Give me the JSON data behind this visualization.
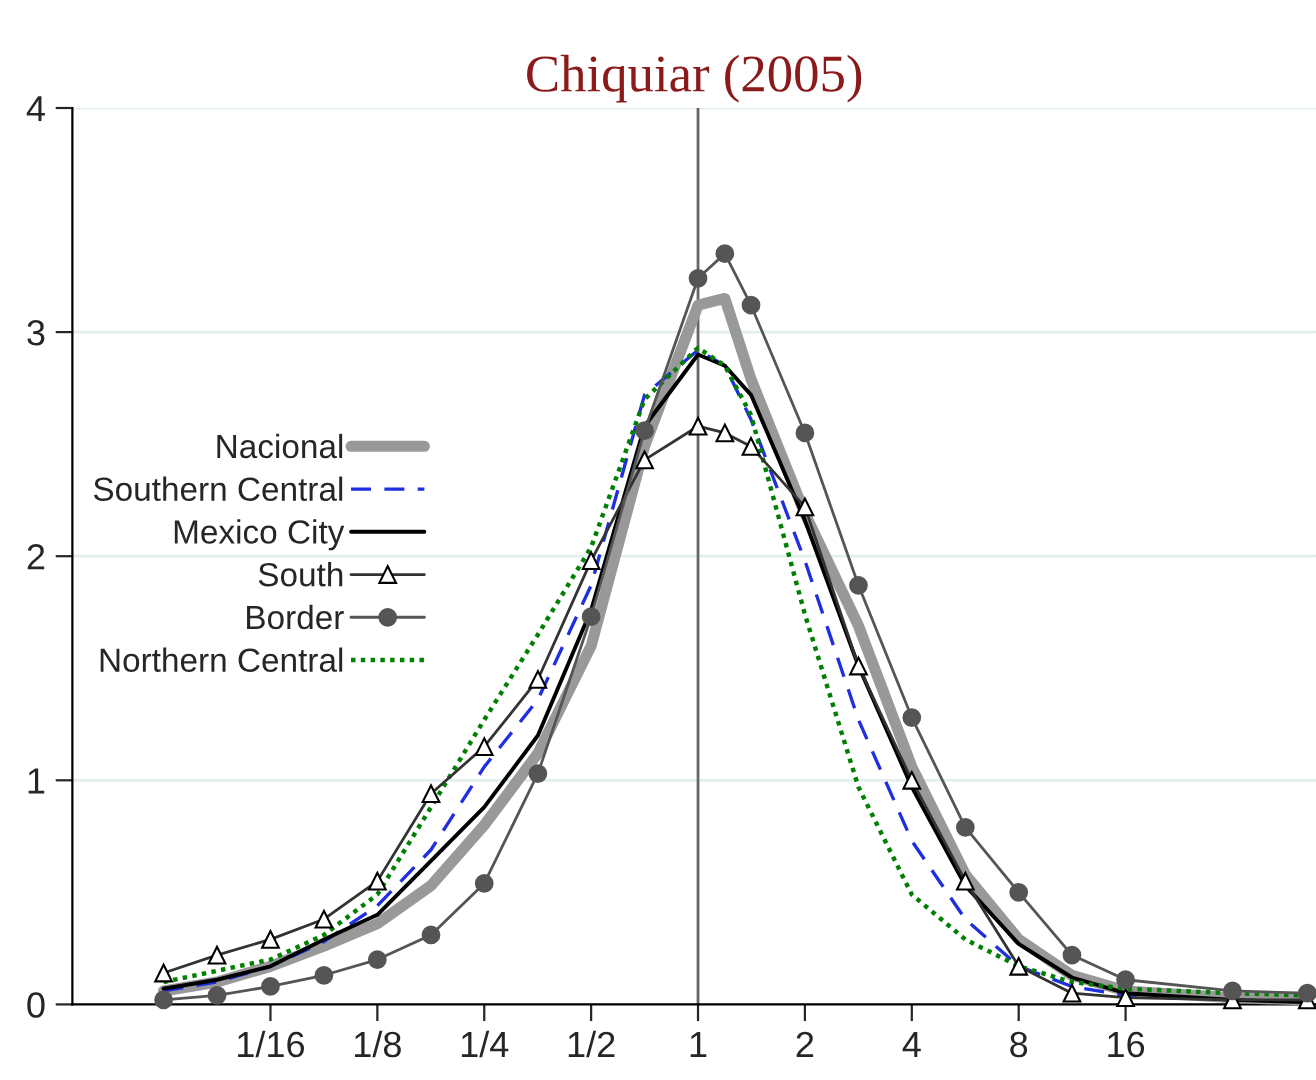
{
  "chart_data": {
    "type": "line",
    "title": "Chiquiar (2005)",
    "x": [
      0.03125,
      0.0442,
      0.0625,
      0.0884,
      0.125,
      0.177,
      0.25,
      0.354,
      0.5,
      0.707,
      1,
      1.19,
      1.41,
      2,
      2.83,
      4,
      5.66,
      8,
      11.3,
      16,
      32,
      52
    ],
    "series": [
      {
        "name": "Nacional",
        "color": "#999999",
        "marker": "none",
        "line_style": "solid",
        "values": [
          0.06,
          0.1,
          0.17,
          0.26,
          0.36,
          0.53,
          0.8,
          1.12,
          1.6,
          2.49,
          3.12,
          3.15,
          2.79,
          2.19,
          1.69,
          1.06,
          0.58,
          0.29,
          0.13,
          0.06,
          0.03,
          0.02
        ]
      },
      {
        "name": "Southern Central",
        "color": "#1f2fe0",
        "marker": "none",
        "line_style": "dashed",
        "values": [
          0.06,
          0.1,
          0.17,
          0.28,
          0.44,
          0.69,
          1.06,
          1.36,
          1.87,
          2.72,
          2.92,
          2.85,
          2.61,
          1.98,
          1.27,
          0.73,
          0.38,
          0.17,
          0.08,
          0.04,
          0.02,
          0.01
        ]
      },
      {
        "name": "Mexico City",
        "color": "#000000",
        "marker": "none",
        "line_style": "solid",
        "values": [
          0.07,
          0.11,
          0.17,
          0.29,
          0.4,
          0.64,
          0.88,
          1.2,
          1.76,
          2.58,
          2.9,
          2.85,
          2.72,
          2.16,
          1.51,
          0.97,
          0.53,
          0.27,
          0.12,
          0.05,
          0.02,
          0.01
        ]
      },
      {
        "name": "South",
        "color": "#333333",
        "marker": "triangle",
        "line_style": "solid",
        "values": [
          0.14,
          0.22,
          0.29,
          0.38,
          0.55,
          0.94,
          1.15,
          1.45,
          1.98,
          2.43,
          2.58,
          2.55,
          2.49,
          2.22,
          1.51,
          1.0,
          0.55,
          0.17,
          0.05,
          0.03,
          0.02,
          0.02
        ]
      },
      {
        "name": "Border",
        "color": "#555555",
        "marker": "circle",
        "line_style": "solid",
        "values": [
          0.02,
          0.04,
          0.08,
          0.13,
          0.2,
          0.31,
          0.54,
          1.03,
          1.73,
          2.56,
          3.24,
          3.35,
          3.12,
          2.55,
          1.87,
          1.28,
          0.79,
          0.5,
          0.22,
          0.11,
          0.06,
          0.05
        ]
      },
      {
        "name": "Northern Central",
        "color": "#008000",
        "marker": "none",
        "line_style": "dotted",
        "values": [
          0.1,
          0.15,
          0.2,
          0.31,
          0.49,
          0.88,
          1.27,
          1.65,
          2.04,
          2.7,
          2.93,
          2.85,
          2.63,
          1.74,
          0.97,
          0.49,
          0.29,
          0.17,
          0.1,
          0.07,
          0.05,
          0.04
        ]
      }
    ],
    "log": "x",
    "xlim": [
      0.0173,
      55
    ],
    "xticks": [
      {
        "value": 0.0625,
        "label": "1/16"
      },
      {
        "value": 0.125,
        "label": "1/8"
      },
      {
        "value": 0.25,
        "label": "1/4"
      },
      {
        "value": 0.5,
        "label": "1/2"
      },
      1,
      2,
      4,
      8,
      16
    ],
    "ylim": [
      0,
      4
    ],
    "yticks": [
      0,
      1,
      2,
      3,
      4
    ],
    "ref_lines": [
      {
        "axis": "x",
        "value": 1,
        "color": "#666666"
      }
    ],
    "grid": "y",
    "legend": "left"
  }
}
